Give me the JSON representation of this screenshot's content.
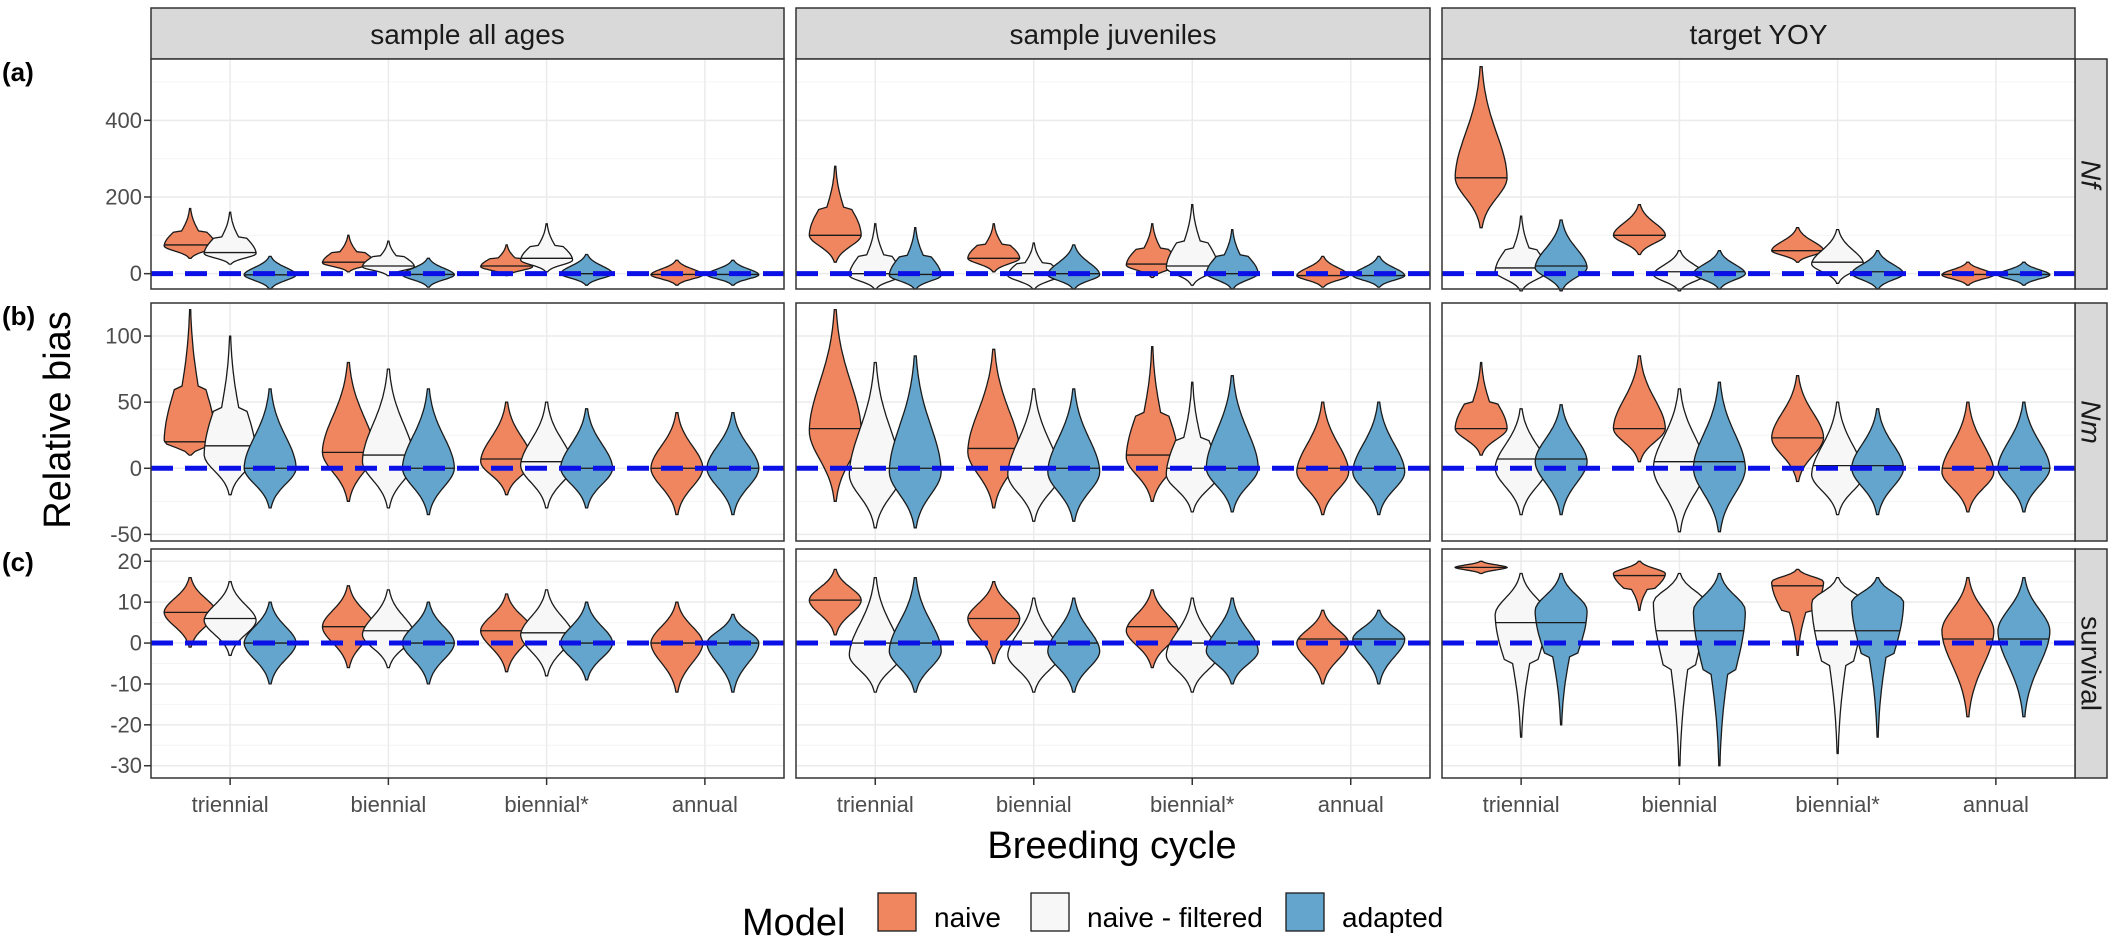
{
  "chart_data": {
    "type": "violin",
    "facet_columns": [
      "sample all ages",
      "sample juveniles",
      "target YOY"
    ],
    "facet_rows": [
      {
        "tag": "(a)",
        "strip": "Nf",
        "italic": true,
        "ylim": [
          -40,
          560
        ],
        "yticks": [
          0,
          200,
          400
        ]
      },
      {
        "tag": "(b)",
        "strip": "Nm",
        "italic": true,
        "ylim": [
          -55,
          125
        ],
        "yticks": [
          -50,
          0,
          50,
          100
        ]
      },
      {
        "tag": "(c)",
        "strip": "survival",
        "italic": false,
        "ylim": [
          -33,
          23
        ],
        "yticks": [
          -30,
          -20,
          -10,
          0,
          10,
          20
        ]
      }
    ],
    "categories": [
      "triennial",
      "biennial",
      "biennial*",
      "annual"
    ],
    "xlabel": "Breeding cycle",
    "ylabel": "Relative bias",
    "reference_line": 0,
    "legend": {
      "title": "Model",
      "position": "bottom",
      "entries": [
        {
          "name": "naive",
          "color": "#f0865f"
        },
        {
          "name": "naive - filtered",
          "color": "#f7f7f7"
        },
        {
          "name": "adapted",
          "color": "#63a5cc"
        }
      ]
    },
    "colors": {
      "reference": "#0b10e6",
      "strip_bg": "#d9d9d9",
      "grid": "#ebebeb",
      "outline": "#1a1a1a"
    },
    "violins": [
      [
        [
          [
            {
              "min": 40,
              "max": 170,
              "med": 75,
              "mode": 72
            },
            {
              "min": 25,
              "max": 160,
              "med": 55,
              "mode": 52
            },
            {
              "min": -40,
              "max": 45,
              "med": -3,
              "mode": -3
            }
          ],
          [
            {
              "min": 5,
              "max": 100,
              "med": 30,
              "mode": 28
            },
            {
              "min": -5,
              "max": 85,
              "med": 20,
              "mode": 18
            },
            {
              "min": -35,
              "max": 40,
              "med": -2,
              "mode": -3
            }
          ],
          [
            {
              "min": -5,
              "max": 75,
              "med": 20,
              "mode": 18
            },
            {
              "min": 5,
              "max": 130,
              "med": 40,
              "mode": 35
            },
            {
              "min": -30,
              "max": 50,
              "med": 0,
              "mode": 0
            }
          ],
          [
            {
              "min": -30,
              "max": 35,
              "med": -2,
              "mode": -3
            },
            null,
            {
              "min": -30,
              "max": 35,
              "med": -2,
              "mode": -3
            }
          ]
        ],
        [
          [
            {
              "min": 10,
              "max": 120,
              "med": 20,
              "mode": 20
            },
            {
              "min": -20,
              "max": 100,
              "med": 17,
              "mode": 10
            },
            {
              "min": -30,
              "max": 60,
              "med": 0,
              "mode": 0
            }
          ],
          [
            {
              "min": -25,
              "max": 80,
              "med": 12,
              "mode": 12
            },
            {
              "min": -30,
              "max": 75,
              "med": 10,
              "mode": 5
            },
            {
              "min": -35,
              "max": 60,
              "med": 0,
              "mode": 0
            }
          ],
          [
            {
              "min": -20,
              "max": 50,
              "med": 7,
              "mode": 5
            },
            {
              "min": -30,
              "max": 50,
              "med": 5,
              "mode": 2
            },
            {
              "min": -30,
              "max": 45,
              "med": 0,
              "mode": 0
            }
          ],
          [
            {
              "min": -35,
              "max": 42,
              "med": 0,
              "mode": 0
            },
            null,
            {
              "min": -35,
              "max": 42,
              "med": 0,
              "mode": 0
            }
          ]
        ],
        [
          [
            {
              "min": -1,
              "max": 16,
              "med": 7.5,
              "mode": 7.5
            },
            {
              "min": -3,
              "max": 15,
              "med": 6,
              "mode": 5.5
            },
            {
              "min": -10,
              "max": 10,
              "med": 0,
              "mode": 0
            }
          ],
          [
            {
              "min": -6,
              "max": 14,
              "med": 4,
              "mode": 4
            },
            {
              "min": -6,
              "max": 13,
              "med": 3,
              "mode": 2
            },
            {
              "min": -10,
              "max": 10,
              "med": 0,
              "mode": 0
            }
          ],
          [
            {
              "min": -7,
              "max": 12,
              "med": 3,
              "mode": 3
            },
            {
              "min": -8,
              "max": 13,
              "med": 2.5,
              "mode": 2
            },
            {
              "min": -9,
              "max": 10,
              "med": 0,
              "mode": 0
            }
          ],
          [
            {
              "min": -12,
              "max": 10,
              "med": 0,
              "mode": 0
            },
            null,
            {
              "min": -12,
              "max": 7,
              "med": 0,
              "mode": 0
            }
          ]
        ]
      ],
      [
        [
          [
            {
              "min": 30,
              "max": 280,
              "med": 100,
              "mode": 100
            },
            {
              "min": -40,
              "max": 130,
              "med": 0,
              "mode": -5
            },
            {
              "min": -40,
              "max": 120,
              "med": -2,
              "mode": -5
            }
          ],
          [
            {
              "min": 5,
              "max": 130,
              "med": 40,
              "mode": 40
            },
            {
              "min": -40,
              "max": 80,
              "med": 0,
              "mode": -5
            },
            {
              "min": -40,
              "max": 75,
              "med": 0,
              "mode": -3
            }
          ],
          [
            {
              "min": -10,
              "max": 130,
              "med": 25,
              "mode": 22
            },
            {
              "min": -30,
              "max": 180,
              "med": 20,
              "mode": 15
            },
            {
              "min": -40,
              "max": 115,
              "med": 0,
              "mode": 0
            }
          ],
          [
            {
              "min": -35,
              "max": 45,
              "med": -5,
              "mode": -5
            },
            null,
            {
              "min": -35,
              "max": 45,
              "med": -5,
              "mode": -5
            }
          ]
        ],
        [
          [
            {
              "min": -25,
              "max": 120,
              "med": 30,
              "mode": 28
            },
            {
              "min": -45,
              "max": 80,
              "med": 0,
              "mode": -5
            },
            {
              "min": -45,
              "max": 85,
              "med": 0,
              "mode": -3
            }
          ],
          [
            {
              "min": -30,
              "max": 90,
              "med": 15,
              "mode": 12
            },
            {
              "min": -40,
              "max": 60,
              "med": 0,
              "mode": -5
            },
            {
              "min": -40,
              "max": 60,
              "med": 0,
              "mode": -3
            }
          ],
          [
            {
              "min": -25,
              "max": 92,
              "med": 10,
              "mode": 8
            },
            {
              "min": -33,
              "max": 65,
              "med": 0,
              "mode": -5
            },
            {
              "min": -33,
              "max": 70,
              "med": 0,
              "mode": 0
            }
          ],
          [
            {
              "min": -35,
              "max": 50,
              "med": 0,
              "mode": -3
            },
            null,
            {
              "min": -35,
              "max": 50,
              "med": 0,
              "mode": -3
            }
          ]
        ],
        [
          [
            {
              "min": 2,
              "max": 18,
              "med": 10.5,
              "mode": 10.5
            },
            {
              "min": -12,
              "max": 16,
              "med": 0,
              "mode": -3
            },
            {
              "min": -12,
              "max": 16,
              "med": 0,
              "mode": -2
            }
          ],
          [
            {
              "min": -5,
              "max": 15,
              "med": 6,
              "mode": 6
            },
            {
              "min": -12,
              "max": 11,
              "med": 0,
              "mode": -3
            },
            {
              "min": -12,
              "max": 11,
              "med": 0,
              "mode": -2
            }
          ],
          [
            {
              "min": -6,
              "max": 13,
              "med": 4,
              "mode": 3
            },
            {
              "min": -12,
              "max": 11,
              "med": 0,
              "mode": -3
            },
            {
              "min": -10,
              "max": 11,
              "med": 0,
              "mode": -2
            }
          ],
          [
            {
              "min": -10,
              "max": 8,
              "med": 1,
              "mode": 0
            },
            null,
            {
              "min": -10,
              "max": 8,
              "med": 1,
              "mode": 1
            }
          ]
        ]
      ],
      [
        [
          [
            {
              "min": 120,
              "max": 540,
              "med": 250,
              "mode": 250
            },
            {
              "min": -45,
              "max": 150,
              "med": 15,
              "mode": 5
            },
            {
              "min": -45,
              "max": 140,
              "med": 20,
              "mode": 15
            }
          ],
          [
            {
              "min": 50,
              "max": 180,
              "med": 100,
              "mode": 100
            },
            {
              "min": -45,
              "max": 60,
              "med": 5,
              "mode": -3
            },
            {
              "min": -40,
              "max": 60,
              "med": 5,
              "mode": 0
            }
          ],
          [
            {
              "min": 30,
              "max": 120,
              "med": 60,
              "mode": 60
            },
            {
              "min": -25,
              "max": 115,
              "med": 30,
              "mode": 25
            },
            {
              "min": -40,
              "max": 60,
              "med": 5,
              "mode": 0
            }
          ],
          [
            {
              "min": -30,
              "max": 30,
              "med": -2,
              "mode": -3
            },
            null,
            {
              "min": -30,
              "max": 30,
              "med": -2,
              "mode": -3
            }
          ]
        ],
        [
          [
            {
              "min": 10,
              "max": 80,
              "med": 30,
              "mode": 30
            },
            {
              "min": -35,
              "max": 45,
              "med": 7,
              "mode": 0
            },
            {
              "min": -35,
              "max": 48,
              "med": 7,
              "mode": 5
            }
          ],
          [
            {
              "min": 5,
              "max": 85,
              "med": 30,
              "mode": 30
            },
            {
              "min": -48,
              "max": 60,
              "med": 5,
              "mode": 0
            },
            {
              "min": -48,
              "max": 65,
              "med": 5,
              "mode": 0
            }
          ],
          [
            {
              "min": -10,
              "max": 70,
              "med": 23,
              "mode": 23
            },
            {
              "min": -35,
              "max": 50,
              "med": 2,
              "mode": -5
            },
            {
              "min": -35,
              "max": 45,
              "med": 2,
              "mode": 0
            }
          ],
          [
            {
              "min": -33,
              "max": 50,
              "med": 0,
              "mode": -3
            },
            null,
            {
              "min": -33,
              "max": 50,
              "med": 0,
              "mode": 0
            }
          ]
        ],
        [
          [
            {
              "min": 17,
              "max": 20,
              "med": 18.5,
              "mode": 18.5
            },
            {
              "min": -23,
              "max": 17,
              "med": 5,
              "mode": 7
            },
            {
              "min": -20,
              "max": 17,
              "med": 5,
              "mode": 8
            }
          ],
          [
            {
              "min": 8,
              "max": 20,
              "med": 16.5,
              "mode": 17
            },
            {
              "min": -30,
              "max": 17,
              "med": 3,
              "mode": 10
            },
            {
              "min": -30,
              "max": 17,
              "med": 3,
              "mode": 8
            }
          ],
          [
            {
              "min": -3,
              "max": 18,
              "med": 14,
              "mode": 15
            },
            {
              "min": -27,
              "max": 16,
              "med": 3,
              "mode": 10
            },
            {
              "min": -23,
              "max": 16,
              "med": 3,
              "mode": 10
            }
          ],
          [
            {
              "min": -18,
              "max": 16,
              "med": 1,
              "mode": 3
            },
            null,
            {
              "min": -18,
              "max": 16,
              "med": 1,
              "mode": 3
            }
          ]
        ]
      ]
    ]
  }
}
